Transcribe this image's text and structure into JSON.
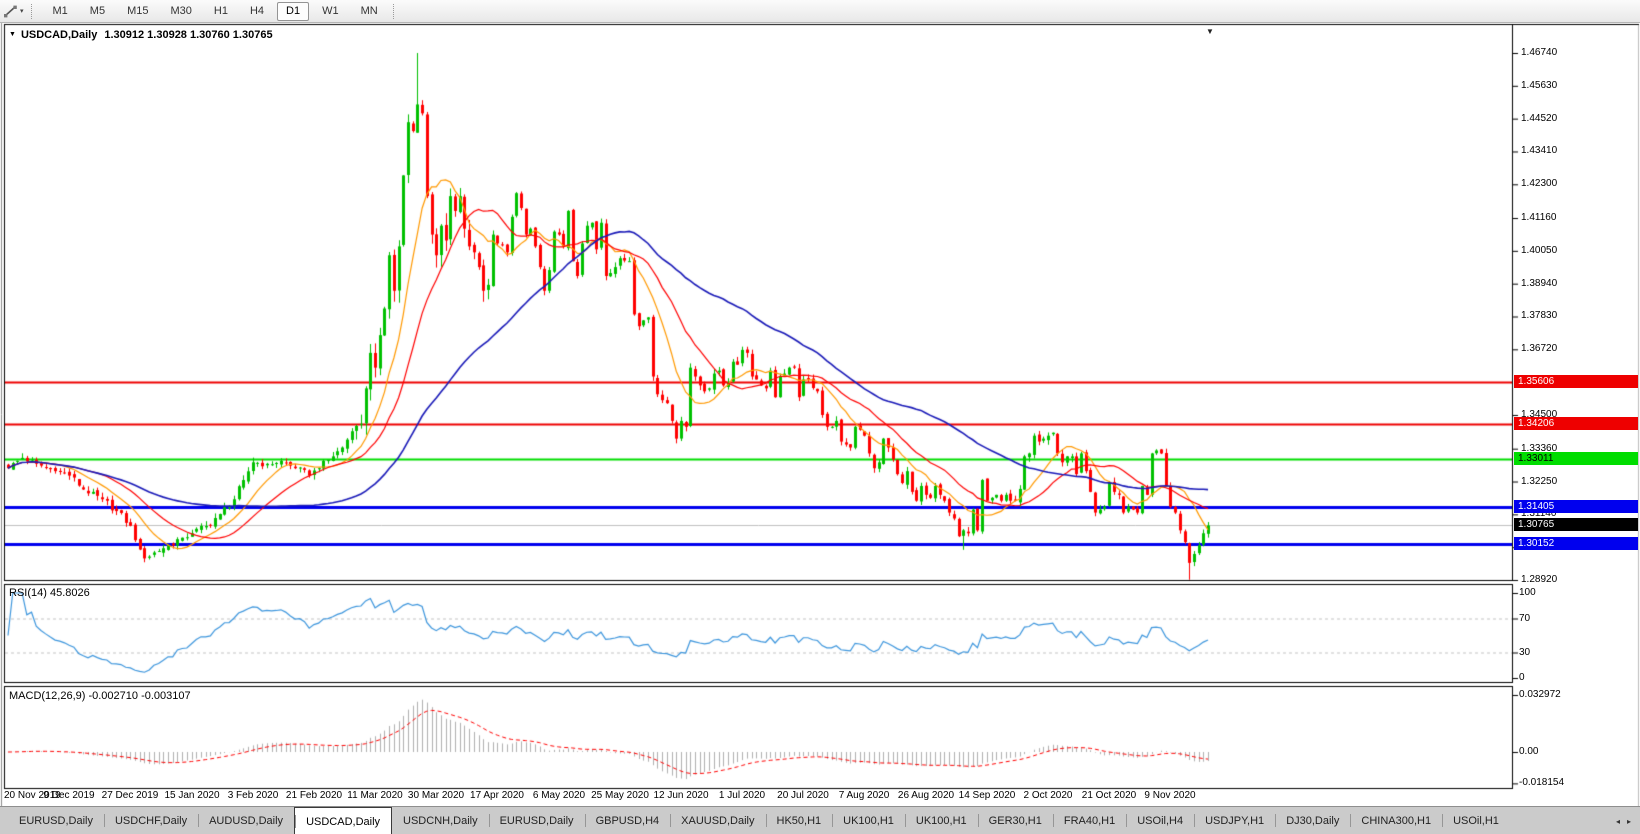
{
  "toolbar": {
    "timeframes": [
      "M1",
      "M5",
      "M15",
      "M30",
      "H1",
      "H4",
      "D1",
      "W1",
      "MN"
    ],
    "active_timeframe": "D1",
    "drawing_tool_caret": "▾"
  },
  "chart": {
    "symbol_label": "USDCAD,Daily",
    "ohlc_text": "1.30912 1.30928 1.30760 1.30765",
    "collapse_triangle": "▼",
    "shift_marker": "▼",
    "rsi_label": "RSI(14) 45.8026",
    "macd_label": "MACD(12,26,9) -0.002710 -0.003107"
  },
  "price_axis": {
    "ticks": [
      "1.46740",
      "1.45630",
      "1.44520",
      "1.43410",
      "1.42300",
      "1.41160",
      "1.40050",
      "1.38940",
      "1.37830",
      "1.36720",
      "1.34500",
      "1.33360",
      "1.32250",
      "1.31140",
      "1.30030",
      "1.28920"
    ],
    "boxes": [
      {
        "text": "1.35606",
        "bg": "#ee0000",
        "fg": "#ffffff"
      },
      {
        "text": "1.34206",
        "bg": "#ee0000",
        "fg": "#ffffff"
      },
      {
        "text": "1.33011",
        "bg": "#00dd00",
        "fg": "#000000"
      },
      {
        "text": "1.31405",
        "bg": "#0000ee",
        "fg": "#ffffff"
      },
      {
        "text": "1.30765",
        "bg": "#000000",
        "fg": "#ffffff"
      },
      {
        "text": "1.30152",
        "bg": "#0000ee",
        "fg": "#ffffff"
      }
    ]
  },
  "rsi_axis": [
    "100",
    "70",
    "30",
    "0"
  ],
  "macd_axis": [
    "0.032972",
    "0.00",
    "-0.018154"
  ],
  "dates": [
    "20 Nov 2019",
    "9 Dec 2019",
    "27 Dec 2019",
    "15 Jan 2020",
    "3 Feb 2020",
    "21 Feb 2020",
    "11 Mar 2020",
    "30 Mar 2020",
    "17 Apr 2020",
    "6 May 2020",
    "25 May 2020",
    "12 Jun 2020",
    "1 Jul 2020",
    "20 Jul 2020",
    "7 Aug 2020",
    "26 Aug 2020",
    "14 Sep 2020",
    "2 Oct 2020",
    "21 Oct 2020",
    "9 Nov 2020"
  ],
  "tabbar": {
    "items": [
      "EURUSD,Daily",
      "USDCHF,Daily",
      "AUDUSD,Daily",
      "USDCAD,Daily",
      "USDCNH,Daily",
      "EURUSD,Daily",
      "GBPUSD,H4",
      "XAUUSD,Daily",
      "HK50,H1",
      "UK100,H1",
      "UK100,H1",
      "GER30,H1",
      "FRA40,H1",
      "USOil,H4",
      "USDJPY,H1",
      "DJ30,Daily",
      "CHINA300,H1",
      "USOil,H1"
    ],
    "active_index": 3,
    "scroll_left_icon": "◂",
    "scroll_right_icon": "▸"
  },
  "chart_data": {
    "type": "candlestick",
    "symbol": "USDCAD",
    "timeframe": "Daily",
    "last_ohlc": {
      "open": 1.30912,
      "high": 1.30928,
      "low": 1.3076,
      "close": 1.30765
    },
    "price_range": [
      1.2892,
      1.4674
    ],
    "colors": {
      "up": "#00c000",
      "down": "#ff0000",
      "ma_fast": "#ff9900",
      "ma_mid": "#ff0000",
      "ma_slow": "#1a1ab8",
      "rsi": "#3d96dd",
      "macd_hist": "#b0b0b0",
      "macd_signal": "#ff0000",
      "level_dash": "#c4c4c4",
      "bid_line": "#c0c0c0"
    },
    "hlines": [
      {
        "price": 1.35606,
        "color": "#ee0000",
        "width": 2
      },
      {
        "price": 1.34206,
        "color": "#ee0000",
        "width": 2
      },
      {
        "price": 1.33011,
        "color": "#00dd00",
        "width": 2
      },
      {
        "price": 1.31405,
        "color": "#0000ee",
        "width": 3
      },
      {
        "price": 1.30152,
        "color": "#0000ee",
        "width": 3
      },
      {
        "price": 1.30765,
        "color": "#c0c0c0",
        "width": 1
      }
    ],
    "moving_averages": [
      {
        "period": 10,
        "color": "#ff9900"
      },
      {
        "period": 20,
        "color": "#ff0000"
      },
      {
        "period": 50,
        "color": "#1a1ab8"
      }
    ],
    "rsi": {
      "period": 14,
      "current": 45.8026,
      "levels": [
        30,
        70
      ],
      "scale": [
        0,
        100
      ]
    },
    "macd": {
      "fast": 12,
      "slow": 26,
      "signal": 9,
      "current_main": -0.00271,
      "current_signal": -0.003107,
      "scale": [
        -0.018154,
        0.032972
      ]
    },
    "close_anchors": [
      [
        0,
        1.327
      ],
      [
        3,
        1.3305
      ],
      [
        6,
        1.3285
      ],
      [
        10,
        1.326
      ],
      [
        13,
        1.3245
      ],
      [
        17,
        1.3185
      ],
      [
        20,
        1.3165
      ],
      [
        23,
        1.3125
      ],
      [
        26,
        1.3075
      ],
      [
        28,
        1.2995
      ],
      [
        29,
        1.2965
      ],
      [
        31,
        1.2985
      ],
      [
        34,
        1.301
      ],
      [
        37,
        1.3035
      ],
      [
        39,
        1.305
      ],
      [
        42,
        1.3075
      ],
      [
        45,
        1.3115
      ],
      [
        48,
        1.3165
      ],
      [
        50,
        1.323
      ],
      [
        52,
        1.329
      ],
      [
        55,
        1.3285
      ],
      [
        58,
        1.3295
      ],
      [
        61,
        1.327
      ],
      [
        64,
        1.3245
      ],
      [
        66,
        1.327
      ],
      [
        69,
        1.331
      ],
      [
        71,
        1.334
      ],
      [
        73,
        1.3395
      ],
      [
        75,
        1.342
      ],
      [
        76,
        1.354
      ],
      [
        77,
        1.366
      ],
      [
        78,
        1.361
      ],
      [
        79,
        1.372
      ],
      [
        80,
        1.381
      ],
      [
        81,
        1.399
      ],
      [
        82,
        1.387
      ],
      [
        83,
        1.402
      ],
      [
        84,
        1.426
      ],
      [
        85,
        1.444
      ],
      [
        86,
        1.441
      ],
      [
        87,
        1.45
      ],
      [
        88,
        1.447
      ],
      [
        89,
        1.419
      ],
      [
        90,
        1.406
      ],
      [
        91,
        1.399
      ],
      [
        92,
        1.409
      ],
      [
        93,
        1.404
      ],
      [
        94,
        1.419
      ],
      [
        95,
        1.414
      ],
      [
        96,
        1.419
      ],
      [
        97,
        1.408
      ],
      [
        98,
        1.402
      ],
      [
        99,
        1.4
      ],
      [
        100,
        1.395
      ],
      [
        101,
        1.387
      ],
      [
        102,
        1.389
      ],
      [
        103,
        1.406
      ],
      [
        104,
        1.403
      ],
      [
        106,
        1.4
      ],
      [
        107,
        1.412
      ],
      [
        108,
        1.42
      ],
      [
        109,
        1.415
      ],
      [
        110,
        1.406
      ],
      [
        111,
        1.408
      ],
      [
        112,
        1.402
      ],
      [
        113,
        1.395
      ],
      [
        114,
        1.387
      ],
      [
        115,
        1.394
      ],
      [
        116,
        1.407
      ],
      [
        117,
        1.406
      ],
      [
        118,
        1.402
      ],
      [
        119,
        1.414
      ],
      [
        120,
        1.397
      ],
      [
        121,
        1.392
      ],
      [
        122,
        1.403
      ],
      [
        123,
        1.409
      ],
      [
        124,
        1.41
      ],
      [
        125,
        1.401
      ],
      [
        126,
        1.41
      ],
      [
        127,
        1.392
      ],
      [
        128,
        1.393
      ],
      [
        129,
        1.395
      ],
      [
        130,
        1.398
      ],
      [
        132,
        1.397
      ],
      [
        133,
        1.379
      ],
      [
        134,
        1.375
      ],
      [
        135,
        1.377
      ],
      [
        136,
        1.378
      ],
      [
        137,
        1.358
      ],
      [
        138,
        1.352
      ],
      [
        139,
        1.35
      ],
      [
        140,
        1.349
      ],
      [
        141,
        1.343
      ],
      [
        142,
        1.337
      ],
      [
        143,
        1.343
      ],
      [
        144,
        1.341
      ],
      [
        145,
        1.361
      ],
      [
        146,
        1.358
      ],
      [
        147,
        1.355
      ],
      [
        148,
        1.353
      ],
      [
        149,
        1.354
      ],
      [
        150,
        1.359
      ],
      [
        151,
        1.36
      ],
      [
        152,
        1.355
      ],
      [
        153,
        1.356
      ],
      [
        154,
        1.363
      ],
      [
        155,
        1.362
      ],
      [
        156,
        1.367
      ],
      [
        157,
        1.366
      ],
      [
        158,
        1.358
      ],
      [
        159,
        1.357
      ],
      [
        160,
        1.355
      ],
      [
        161,
        1.354
      ],
      [
        162,
        1.36
      ],
      [
        163,
        1.351
      ],
      [
        164,
        1.358
      ],
      [
        165,
        1.359
      ],
      [
        166,
        1.361
      ],
      [
        167,
        1.361
      ],
      [
        168,
        1.351
      ],
      [
        169,
        1.357
      ],
      [
        170,
        1.357
      ],
      [
        172,
        1.353
      ],
      [
        173,
        1.345
      ],
      [
        174,
        1.341
      ],
      [
        175,
        1.341
      ],
      [
        176,
        1.343
      ],
      [
        177,
        1.336
      ],
      [
        178,
        1.335
      ],
      [
        179,
        1.334
      ],
      [
        180,
        1.341
      ],
      [
        181,
        1.34
      ],
      [
        182,
        1.338
      ],
      [
        183,
        1.332
      ],
      [
        184,
        1.327
      ],
      [
        185,
        1.329
      ],
      [
        186,
        1.337
      ],
      [
        187,
        1.334
      ],
      [
        188,
        1.33
      ],
      [
        189,
        1.325
      ],
      [
        190,
        1.322
      ],
      [
        191,
        1.326
      ],
      [
        192,
        1.319
      ],
      [
        193,
        1.316
      ],
      [
        194,
        1.321
      ],
      [
        195,
        1.318
      ],
      [
        196,
        1.317
      ],
      [
        197,
        1.321
      ],
      [
        198,
        1.318
      ],
      [
        199,
        1.316
      ],
      [
        200,
        1.312
      ],
      [
        201,
        1.31
      ],
      [
        202,
        1.304
      ],
      [
        203,
        1.306
      ],
      [
        204,
        1.305
      ],
      [
        205,
        1.313
      ],
      [
        206,
        1.306
      ],
      [
        207,
        1.323
      ],
      [
        208,
        1.316
      ],
      [
        209,
        1.317
      ],
      [
        210,
        1.318
      ],
      [
        211,
        1.316
      ],
      [
        212,
        1.318
      ],
      [
        213,
        1.316
      ],
      [
        214,
        1.316
      ],
      [
        215,
        1.32
      ],
      [
        216,
        1.331
      ],
      [
        217,
        1.332
      ],
      [
        218,
        1.338
      ],
      [
        219,
        1.336
      ],
      [
        220,
        1.337
      ],
      [
        221,
        1.338
      ],
      [
        222,
        1.339
      ],
      [
        223,
        1.332
      ],
      [
        224,
        1.329
      ],
      [
        225,
        1.331
      ],
      [
        226,
        1.331
      ],
      [
        227,
        1.325
      ],
      [
        228,
        1.332
      ],
      [
        229,
        1.326
      ],
      [
        230,
        1.319
      ],
      [
        231,
        1.312
      ],
      [
        232,
        1.313
      ],
      [
        233,
        1.314
      ],
      [
        234,
        1.322
      ],
      [
        235,
        1.319
      ],
      [
        236,
        1.318
      ],
      [
        237,
        1.312
      ],
      [
        238,
        1.314
      ],
      [
        239,
        1.313
      ],
      [
        240,
        1.312
      ],
      [
        241,
        1.321
      ],
      [
        242,
        1.318
      ],
      [
        243,
        1.332
      ],
      [
        244,
        1.333
      ],
      [
        245,
        1.332
      ],
      [
        246,
        1.321
      ],
      [
        247,
        1.314
      ],
      [
        248,
        1.312
      ],
      [
        249,
        1.306
      ],
      [
        250,
        1.302
      ],
      [
        251,
        1.295
      ],
      [
        252,
        1.298
      ],
      [
        253,
        1.301
      ],
      [
        254,
        1.305
      ],
      [
        255,
        1.30765
      ]
    ],
    "wick_overrides": [
      {
        "i": 87,
        "high": 1.4674
      },
      {
        "i": 29,
        "low": 1.2952
      },
      {
        "i": 203,
        "low": 1.2994
      },
      {
        "i": 251,
        "low": 1.2893
      }
    ]
  }
}
